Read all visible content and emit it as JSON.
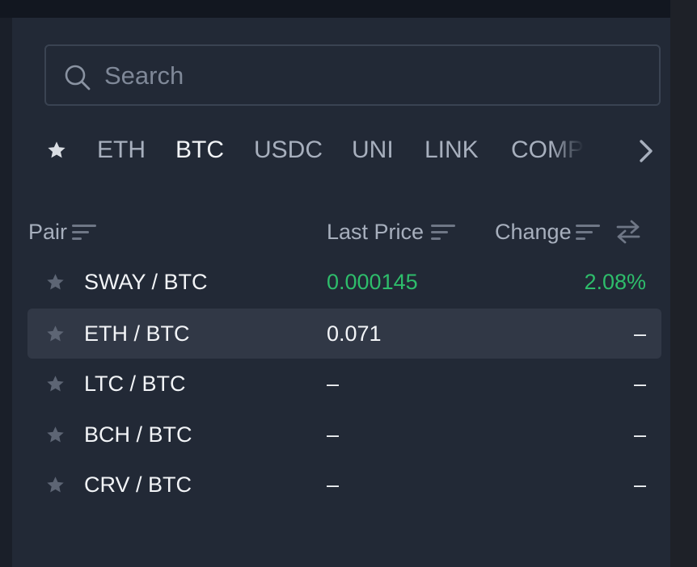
{
  "search": {
    "placeholder": "Search",
    "value": ""
  },
  "tabs": [
    {
      "label": "ETH",
      "active": false
    },
    {
      "label": "BTC",
      "active": true
    },
    {
      "label": "USDC",
      "active": false
    },
    {
      "label": "UNI",
      "active": false
    },
    {
      "label": "LINK",
      "active": false
    },
    {
      "label": "COMP",
      "active": false
    }
  ],
  "columns": {
    "pair": "Pair",
    "last_price": "Last Price",
    "change": "Change"
  },
  "rows": [
    {
      "pair": "SWAY / BTC",
      "price": "0.000145",
      "change": "2.08%"
    },
    {
      "pair": "ETH / BTC",
      "price": "0.071",
      "change": "–"
    },
    {
      "pair": "LTC / BTC",
      "price": "–",
      "change": "–"
    },
    {
      "pair": "BCH / BTC",
      "price": "–",
      "change": "–"
    },
    {
      "pair": "CRV / BTC",
      "price": "–",
      "change": "–"
    }
  ],
  "colors": {
    "background": "#222936",
    "positive": "#2ebd6b",
    "text": "#f2f4f7",
    "muted": "#a7afbd",
    "icon": "#6f7786"
  },
  "icons": {
    "search": "search-icon",
    "favorite": "star-icon",
    "next": "chevron-right-icon",
    "sort": "sort-icon",
    "swap": "swap-icon"
  }
}
